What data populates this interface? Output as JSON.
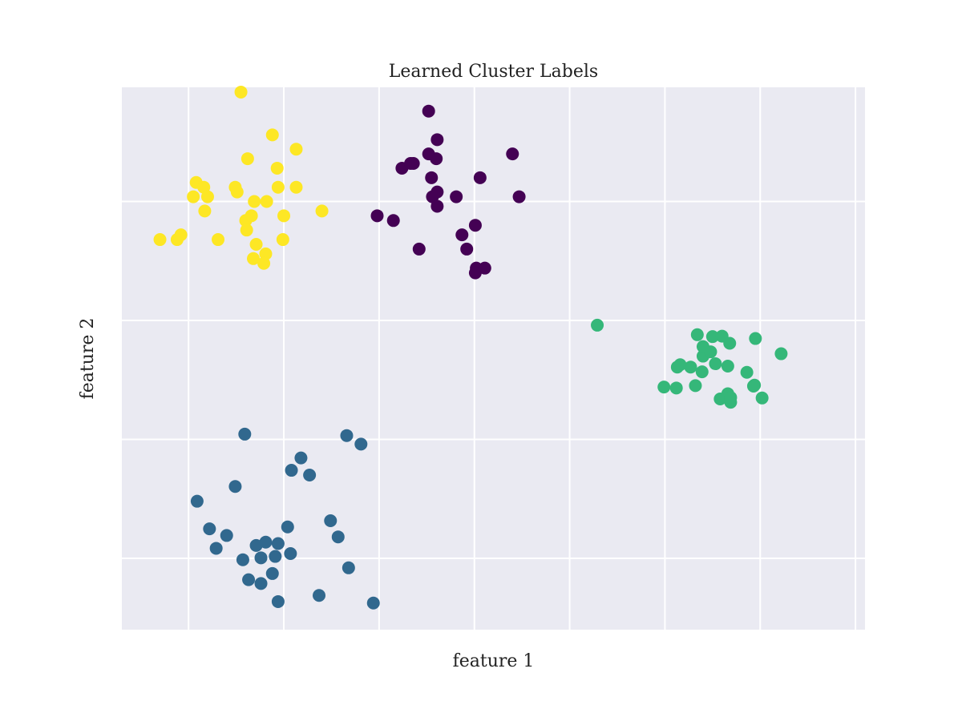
{
  "chart_data": {
    "type": "scatter",
    "title": "Learned Cluster Labels",
    "xlabel": "feature 1",
    "ylabel": "feature 2",
    "xlim": [
      -5.2,
      2.6
    ],
    "ylim": [
      -0.5,
      10.9
    ],
    "x_gridlines": [
      -4.5,
      -3.5,
      -2.5,
      -1.5,
      -0.5,
      0.5,
      1.5,
      2.5
    ],
    "y_gridlines": [
      1.0,
      3.5,
      6.0,
      8.5
    ],
    "show_tick_labels": false,
    "grid": true,
    "background": "#eaeaf2",
    "legend": "none",
    "series": [
      {
        "color": "#440154",
        "x": [
          -1.98,
          -1.89,
          -1.9,
          -1.95,
          -1.94,
          -1.89,
          -2.14,
          -2.26,
          -2.17,
          -1.98,
          -1.89,
          -1.69,
          -1.44,
          -1.49,
          -1.03,
          -1.1,
          -2.52,
          -2.35,
          -2.08,
          -1.63,
          -1.58,
          -1.48,
          -1.49,
          -1.39
        ],
        "y": [
          10.4,
          9.8,
          9.4,
          9.0,
          8.6,
          8.4,
          9.3,
          9.2,
          9.3,
          9.5,
          8.7,
          8.6,
          9.0,
          8.0,
          8.6,
          9.5,
          8.2,
          8.1,
          7.5,
          7.8,
          7.5,
          7.1,
          7.0,
          7.1
        ]
      },
      {
        "color": "#31688e",
        "x": [
          -3.79,
          -3.46,
          -4.01,
          -3.32,
          -3.42,
          -3.01,
          -3.56,
          -3.91,
          -4.41,
          -4.21,
          -4.28,
          -3.74,
          -3.62,
          -3.93,
          -3.74,
          -3.43,
          -3.87,
          -3.13,
          -3.56,
          -2.93,
          -3.59,
          -4.1,
          -3.69,
          -2.56,
          -2.69,
          -2.84,
          -2.82,
          -3.23
        ],
        "y": [
          1.27,
          1.66,
          2.51,
          3.11,
          2.85,
          1.79,
          0.09,
          3.61,
          2.2,
          1.21,
          1.62,
          1.01,
          0.68,
          0.97,
          0.47,
          1.1,
          0.55,
          0.22,
          1.31,
          1.45,
          1.04,
          1.48,
          1.34,
          0.06,
          3.4,
          3.58,
          0.8,
          2.75
        ]
      },
      {
        "color": "#35b779",
        "x": [
          1.36,
          1.45,
          1.52,
          1.19,
          1.44,
          1.08,
          1.16,
          0.89,
          0.77,
          0.49,
          -0.21,
          0.62,
          0.66,
          0.9,
          0.98,
          1.0,
          1.1,
          1.16,
          1.18,
          1.43,
          1.72,
          0.82,
          0.9,
          1.03,
          0.63,
          1.19,
          0.84
        ],
        "y": [
          4.91,
          5.62,
          4.37,
          4.28,
          4.64,
          4.35,
          4.46,
          4.92,
          5.02,
          4.6,
          5.9,
          4.58,
          5.07,
          5.25,
          5.34,
          5.66,
          5.67,
          5.04,
          5.52,
          4.62,
          5.3,
          4.63,
          5.45,
          5.09,
          5.02,
          4.38,
          5.7
        ]
      },
      {
        "color": "#fde725",
        "x": [
          -4.8,
          -4.62,
          -4.45,
          -4.42,
          -4.34,
          -4.3,
          -4.33,
          -4.19,
          -4.01,
          -3.9,
          -3.88,
          -3.95,
          -3.84,
          -3.81,
          -3.79,
          -3.69,
          -3.68,
          -3.57,
          -3.5,
          -3.37,
          -3.37,
          -3.51,
          -3.71,
          -3.89,
          -3.99,
          -4.58,
          -3.82,
          -3.1,
          -3.56,
          -3.62
        ],
        "y": [
          7.7,
          7.7,
          8.6,
          8.9,
          8.8,
          8.6,
          8.3,
          7.7,
          8.8,
          8.1,
          9.4,
          10.8,
          8.2,
          8.5,
          7.6,
          7.4,
          8.5,
          9.2,
          8.2,
          8.8,
          9.6,
          7.7,
          7.2,
          7.9,
          8.7,
          7.8,
          7.3,
          8.3,
          8.8,
          9.9
        ]
      }
    ]
  }
}
